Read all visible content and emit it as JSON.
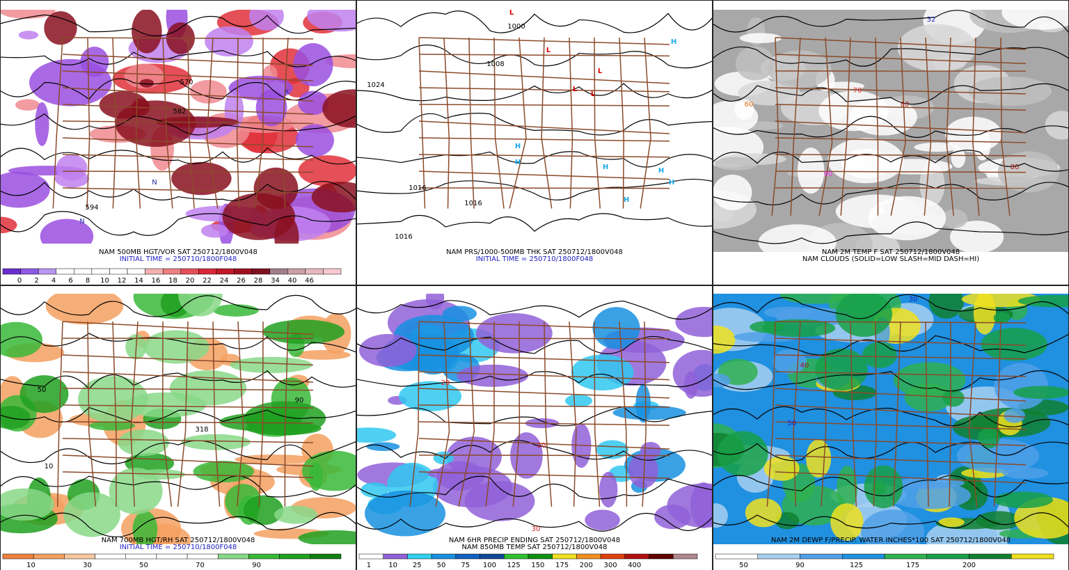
{
  "panels": [
    {
      "caption": [
        "NAM 500MB HGT/VOR SAT 250712/1800V048",
        "INITIAL TIME = 250710/1800F048"
      ],
      "background": "#ffffff",
      "blobs": [
        "#e0303a",
        "#f08a90",
        "#9a4fe0",
        "#c080f0",
        "#8a1020"
      ],
      "colorbar": {
        "colors": [
          "#6a2ed0",
          "#8e5ae6",
          "#b896f0",
          "#ffffff",
          "#ffffff",
          "#ffffff",
          "#ffffff",
          "#ffffff",
          "#f4b0b0",
          "#ec8080",
          "#e45058",
          "#d82838",
          "#c01828",
          "#a01020",
          "#801020",
          "#a08088",
          "#c8a0a8",
          "#e8b8c0",
          "#f8c8d0"
        ],
        "labels": [
          "0",
          "2",
          "4",
          "6",
          "8",
          "10",
          "12",
          "14",
          "16",
          "18",
          "20",
          "22",
          "24",
          "26",
          "28",
          "34",
          "40",
          "46"
        ]
      },
      "labels": [
        {
          "text": "570",
          "color": "#000000"
        },
        {
          "text": "582",
          "color": "#000000"
        },
        {
          "text": "594",
          "color": "#000000"
        },
        {
          "text": "N",
          "color": "#2a2aa0"
        },
        {
          "text": "N",
          "color": "#2a2aa0"
        },
        {
          "text": "X",
          "color": "#2a2aa0"
        }
      ]
    },
    {
      "caption": [
        "NAM PRS/1000-500MB THK SAT 250712/1800V048",
        "INITIAL TIME = 250710/1800F048"
      ],
      "background": "#ffffff",
      "blobs": [],
      "labels": [
        {
          "text": "L",
          "color": "#e00000"
        },
        {
          "text": "L",
          "color": "#e00000"
        },
        {
          "text": "L",
          "color": "#e00000"
        },
        {
          "text": "L",
          "color": "#e00000"
        },
        {
          "text": "L",
          "color": "#e00000"
        },
        {
          "text": "H",
          "color": "#18a8e8"
        },
        {
          "text": "H",
          "color": "#18a8e8"
        },
        {
          "text": "H",
          "color": "#18a8e8"
        },
        {
          "text": "H",
          "color": "#18a8e8"
        },
        {
          "text": "H",
          "color": "#18a8e8"
        },
        {
          "text": "H",
          "color": "#18a8e8"
        },
        {
          "text": "H",
          "color": "#18a8e8"
        },
        {
          "text": "1024",
          "color": "#000000"
        },
        {
          "text": "1016",
          "color": "#000000"
        },
        {
          "text": "1016",
          "color": "#000000"
        },
        {
          "text": "1016",
          "color": "#000000"
        },
        {
          "text": "1000",
          "color": "#000000"
        },
        {
          "text": "1008",
          "color": "#000000"
        }
      ]
    },
    {
      "caption": [
        "NAM 2M TEMP F SAT 250712/1800V048",
        "NAM CLOUDS (SOLID=LOW SLASH=MID DASH=HI)"
      ],
      "background": "#a8a8a8",
      "blobs": [
        "#ffffff",
        "#d8d8d8",
        "#c0c0c0",
        "#ffffff"
      ],
      "labels": [
        {
          "text": "80",
          "color": "#a01818"
        },
        {
          "text": "90",
          "color": "#e020e0"
        },
        {
          "text": "60",
          "color": "#f07010"
        },
        {
          "text": "70",
          "color": "#e03030"
        },
        {
          "text": "80",
          "color": "#a01818"
        },
        {
          "text": "32",
          "color": "#2020c0"
        }
      ]
    },
    {
      "caption": [
        "NAM 700MB HGT/RH SAT 250712/1800V048",
        "INITIAL TIME = 250710/1800F048"
      ],
      "background": "#ffffff",
      "blobs": [
        "#f4a060",
        "#f4a060",
        "#38b838",
        "#20a020",
        "#88d888"
      ],
      "colorbar": {
        "colors": [
          "#f08040",
          "#f4a060",
          "#f8c8a0",
          "#ffffff",
          "#ffffff",
          "#ffffff",
          "#ffffff",
          "#88d888",
          "#38b838",
          "#20a020",
          "#108010"
        ],
        "labels": [
          "10",
          "30",
          "50",
          "70",
          "90"
        ]
      },
      "labels": [
        {
          "text": "50",
          "color": "#000000"
        },
        {
          "text": "90",
          "color": "#000000"
        },
        {
          "text": "10",
          "color": "#000000"
        },
        {
          "text": "318",
          "color": "#000000"
        }
      ]
    },
    {
      "caption": [
        "NAM 6HR PRECIP ENDING SAT 250712/1800V048",
        "NAM 850MB TEMP SAT 250712/1800V048"
      ],
      "background": "#ffffff",
      "blobs": [
        "#9060d8",
        "#30c8f0",
        "#1890e0",
        "#9060d8"
      ],
      "colorbar": {
        "colors": [
          "#ffffff",
          "#9060d8",
          "#30d0f0",
          "#1890e0",
          "#1060c0",
          "#104898",
          "#30c030",
          "#109010",
          "#f0e020",
          "#f09020",
          "#e04010",
          "#b01010",
          "#600000",
          "#b08890"
        ],
        "labels": [
          "1",
          "10",
          "25",
          "50",
          "75",
          "100",
          "125",
          "150",
          "175",
          "200",
          "300",
          "400"
        ]
      },
      "labels": [
        {
          "text": "20",
          "color": "#d02020"
        },
        {
          "text": "20",
          "color": "#d02020"
        },
        {
          "text": "30",
          "color": "#d02020"
        }
      ]
    },
    {
      "caption": [
        "NAM 2M DEWP F/PRECIP. WATER INCHES*100 SAT 250712/1800V048"
      ],
      "background": "#2090e0",
      "blobs": [
        "#a8d0f0",
        "#30b050",
        "#108030",
        "#f0e020",
        "#50a0e8",
        "#18a048"
      ],
      "colorbar": {
        "colors": [
          "#ffffff",
          "#a8d0f0",
          "#50a0e8",
          "#2090e0",
          "#30b050",
          "#18a048",
          "#108030",
          "#f0e020"
        ],
        "labels": [
          "50",
          "90",
          "125",
          "175",
          "200"
        ]
      },
      "labels": [
        {
          "text": "40",
          "color": "#a01818"
        },
        {
          "text": "50",
          "color": "#2020c0"
        },
        {
          "text": "30",
          "color": "#2020c0"
        }
      ]
    }
  ]
}
